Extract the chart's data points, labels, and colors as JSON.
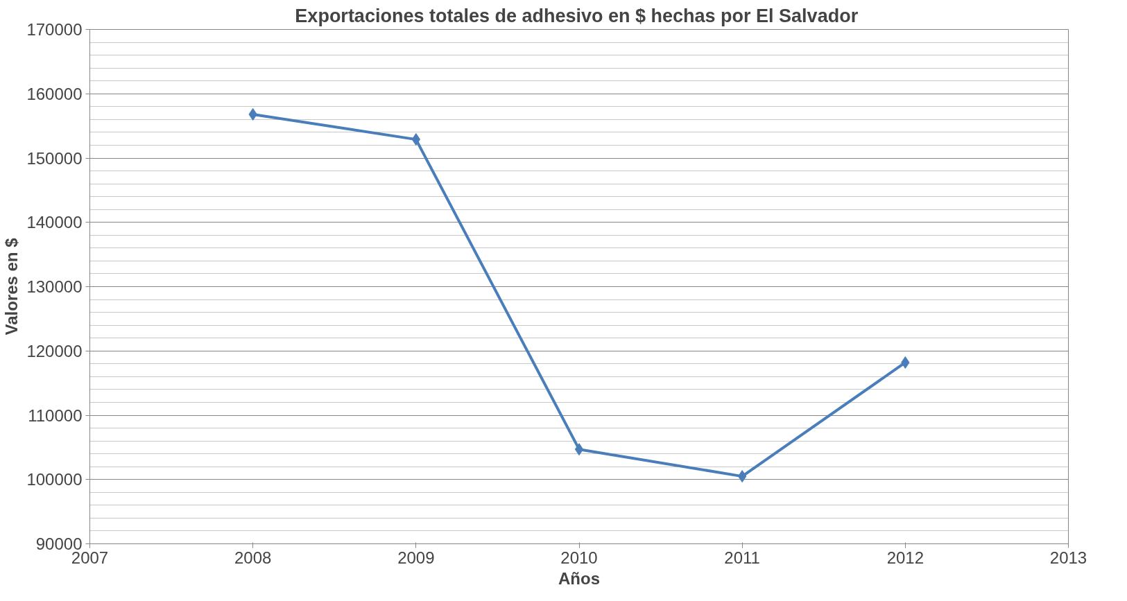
{
  "chart_data": {
    "type": "line",
    "title": "Exportaciones totales de adhesivo  en $ hechas por El Salvador",
    "xlabel": "Años",
    "ylabel": "Valores en $",
    "x": [
      2008,
      2009,
      2010,
      2011,
      2012
    ],
    "series": [
      {
        "color": "#4a7ebb",
        "values": [
          156800,
          152900,
          104700,
          100500,
          118200
        ]
      }
    ],
    "xlim": [
      2007,
      2013
    ],
    "xticks": [
      2007,
      2008,
      2009,
      2010,
      2011,
      2012,
      2013
    ],
    "ylim": [
      90000,
      170000
    ],
    "yticks": [
      90000,
      100000,
      110000,
      120000,
      130000,
      140000,
      150000,
      160000,
      170000
    ],
    "grid": true,
    "marker": "diamond",
    "line_style": "solid"
  }
}
